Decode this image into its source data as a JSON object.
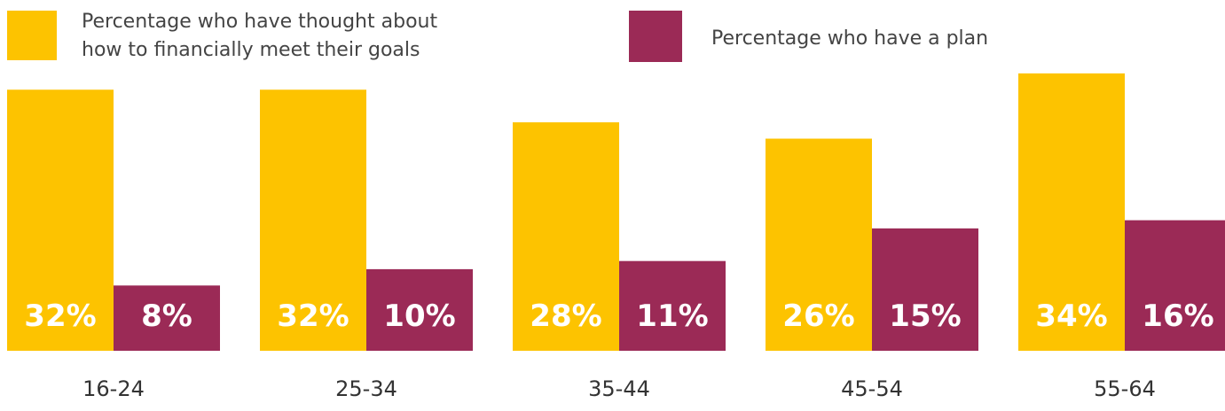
{
  "chart_data": {
    "type": "bar",
    "categories": [
      "16-24",
      "25-34",
      "35-44",
      "45-54",
      "55-64"
    ],
    "series": [
      {
        "name": "Percentage who have thought about how to financially meet their goals",
        "legend_lines": [
          "Percentage who have thought about",
          "how to financially meet their goals"
        ],
        "values": [
          32,
          32,
          28,
          26,
          34
        ],
        "labels": [
          "32%",
          "32%",
          "28%",
          "26%",
          "34%"
        ],
        "color": "#FDC300"
      },
      {
        "name": "Percentage who have a plan",
        "legend_lines": [
          "Percentage who have a plan"
        ],
        "values": [
          8,
          10,
          11,
          15,
          16
        ],
        "labels": [
          "8%",
          "10%",
          "11%",
          "15%",
          "16%"
        ],
        "color": "#9B2A56"
      }
    ],
    "legend_position": "top",
    "grid": false,
    "title": "",
    "xlabel": "",
    "ylabel": ""
  }
}
